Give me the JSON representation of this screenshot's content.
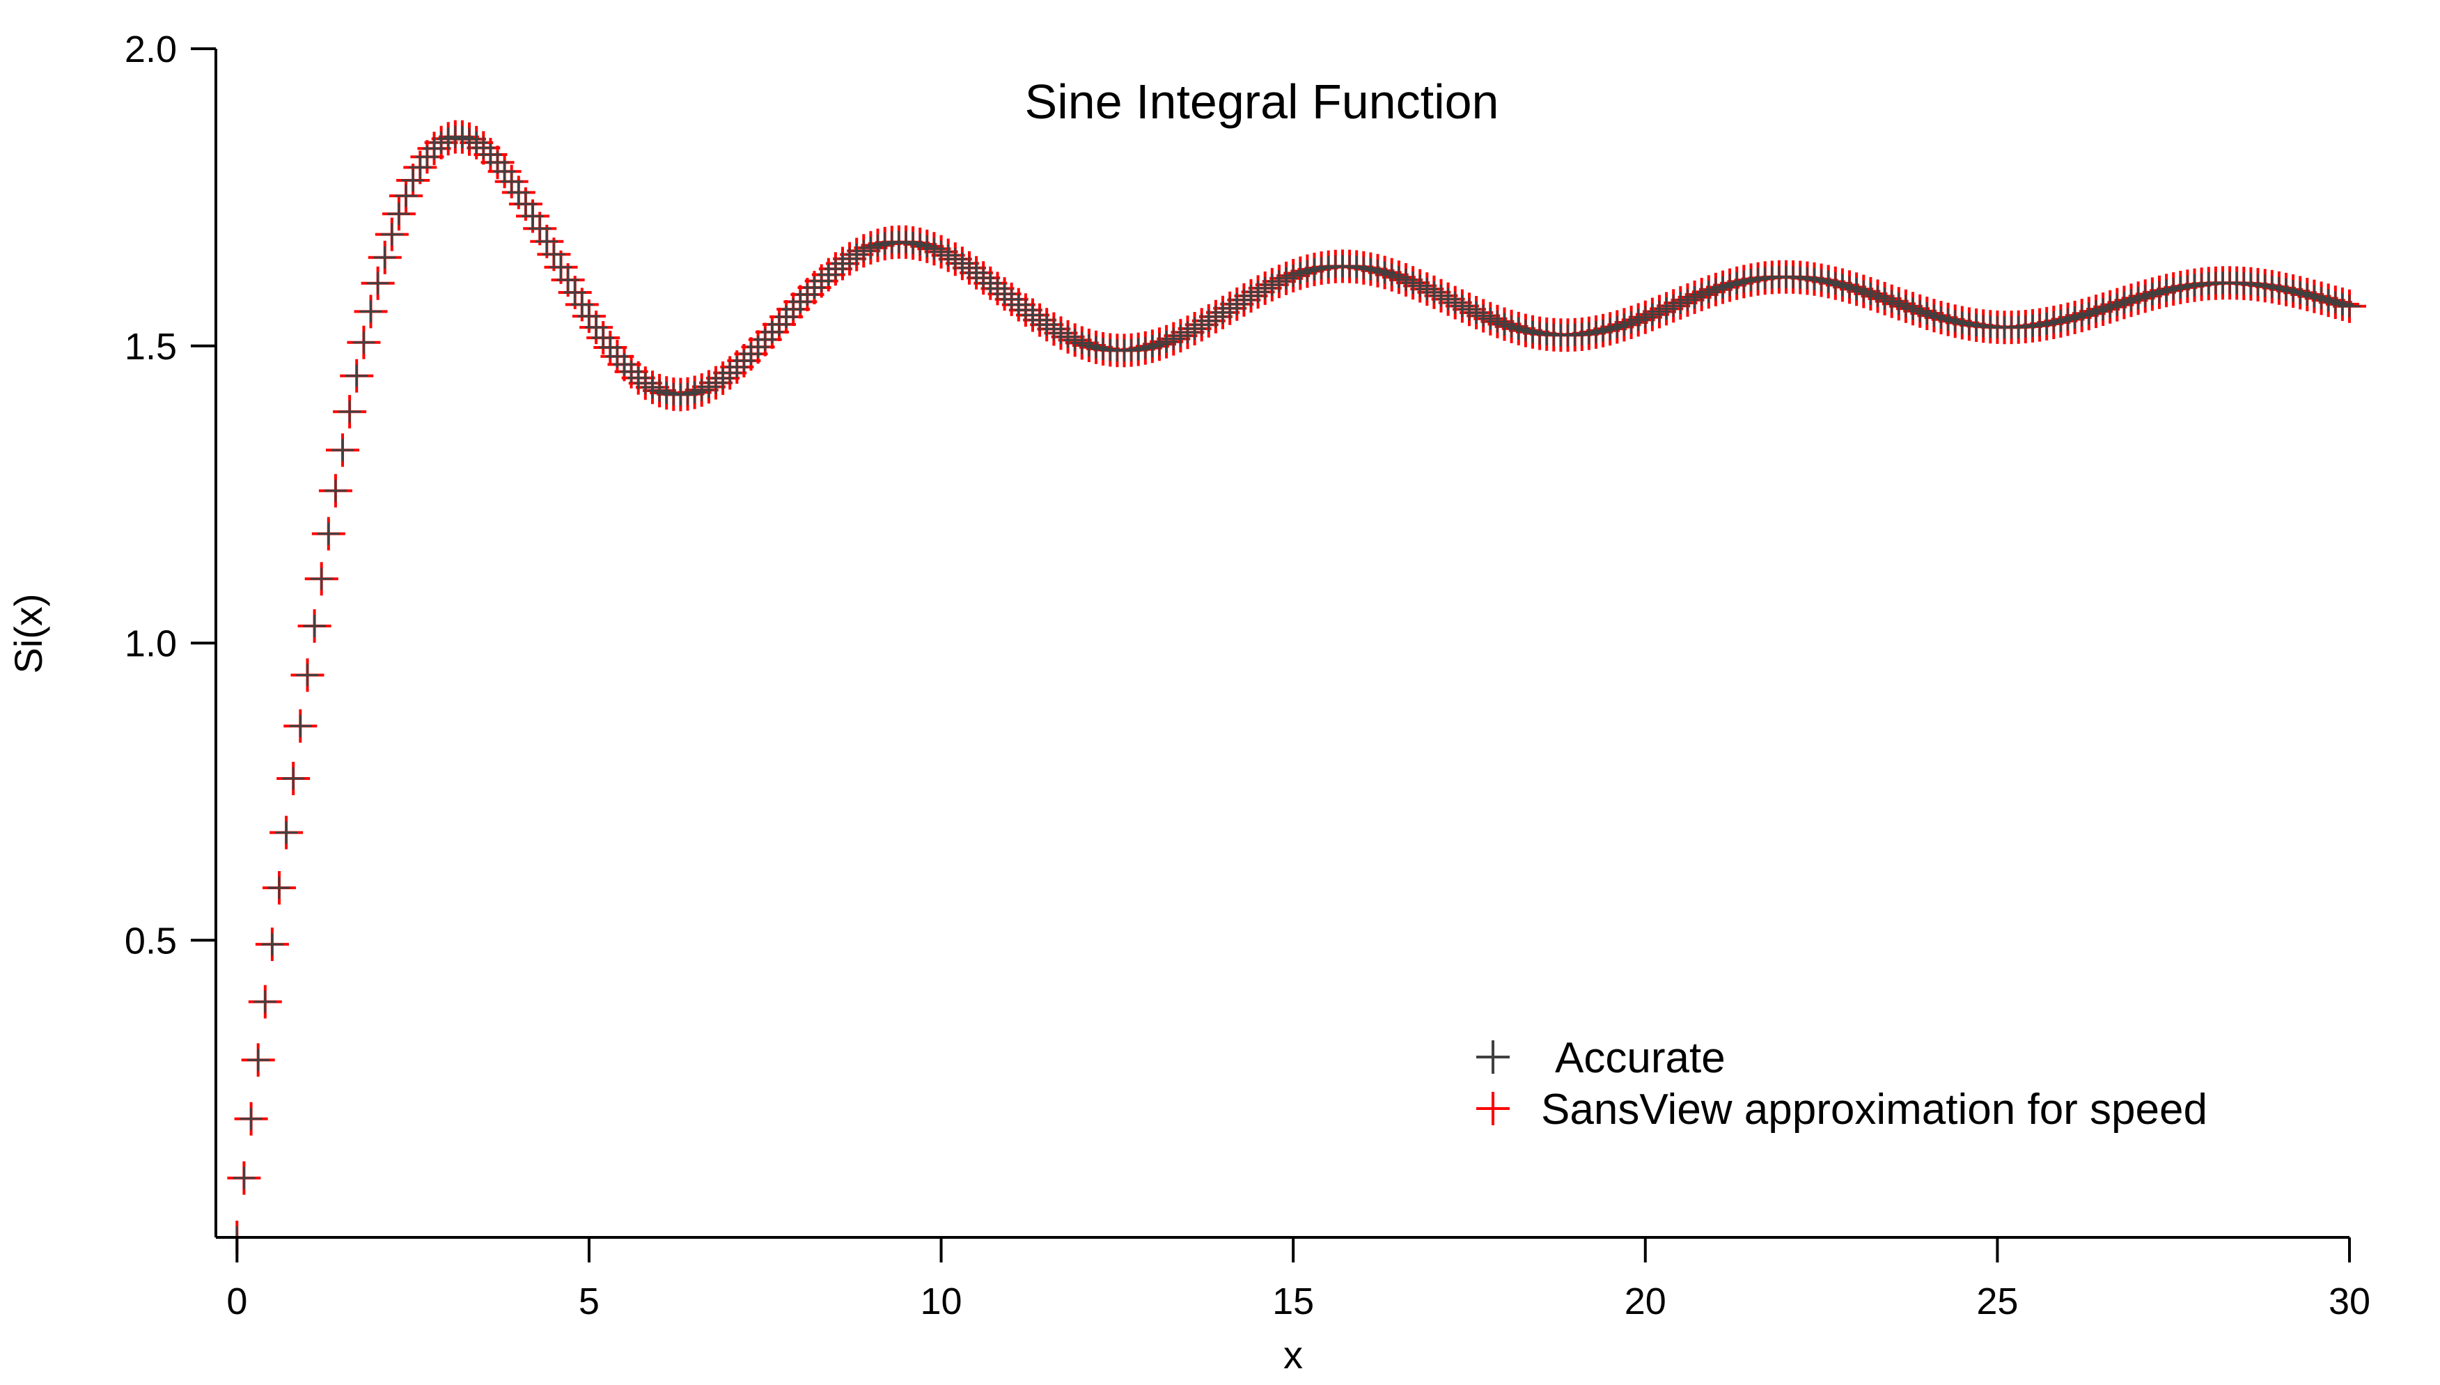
{
  "chart_data": {
    "type": "scatter",
    "title": "Sine Integral Function",
    "xlabel": "x",
    "ylabel": "Si(x)",
    "xlim": [
      -0.3,
      30
    ],
    "ylim": [
      0,
      2.0
    ],
    "x_ticks": [
      0,
      5,
      10,
      15,
      20,
      25,
      30
    ],
    "x_tick_labels": [
      "0",
      "5",
      "10",
      "15",
      "20",
      "25",
      "30"
    ],
    "y_ticks": [
      0.5,
      1.0,
      1.5,
      2.0
    ],
    "y_tick_labels": [
      "0.5",
      "1.0",
      "1.5",
      "2.0"
    ],
    "grid": false,
    "legend_position": "bottom-right",
    "x_sampling": {
      "start": 0,
      "stop": 30,
      "step": 0.1
    },
    "series": [
      {
        "name": "Accurate",
        "marker": "+",
        "color": "#404040"
      },
      {
        "name": "SansView approximation for speed",
        "marker": "+",
        "color": "#ff0000"
      }
    ],
    "key_points": [
      {
        "x": 0,
        "y": 0.0
      },
      {
        "x": 3.14,
        "y": 1.852
      },
      {
        "x": 6.28,
        "y": 1.418
      },
      {
        "x": 9.42,
        "y": 1.675
      },
      {
        "x": 12.57,
        "y": 1.492
      },
      {
        "x": 15.71,
        "y": 1.634
      },
      {
        "x": 18.85,
        "y": 1.518
      },
      {
        "x": 21.99,
        "y": 1.616
      },
      {
        "x": 25.13,
        "y": 1.531
      },
      {
        "x": 28.27,
        "y": 1.606
      },
      {
        "x": 30,
        "y": 1.567
      }
    ]
  }
}
